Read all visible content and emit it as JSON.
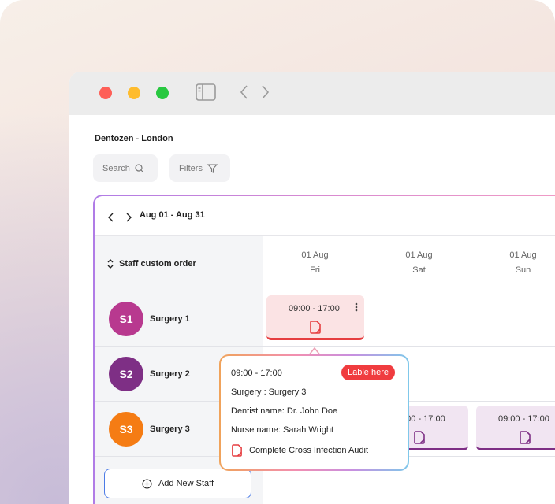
{
  "organization": "Dentozen - London",
  "toolbar": {
    "search_label": "Search",
    "filters_label": "Filters"
  },
  "calendar": {
    "date_range": "Aug 01 - Aug 31",
    "sort_label": "Staff custom order",
    "days": [
      {
        "date": "01 Aug",
        "weekday": "Fri"
      },
      {
        "date": "01 Aug",
        "weekday": "Sat"
      },
      {
        "date": "01 Aug",
        "weekday": "Sun"
      }
    ],
    "staff": [
      {
        "initials": "S1",
        "name": "Surgery 1",
        "color": "#b8398f"
      },
      {
        "initials": "S2",
        "name": "Surgery 2",
        "color": "#7e2f85"
      },
      {
        "initials": "S3",
        "name": "Surgery 3",
        "color": "#f57c14"
      }
    ],
    "add_staff_label": "Add New Staff",
    "shifts": [
      {
        "time": "09:00 - 17:00"
      },
      {
        "time": "9:00 - 17:00"
      },
      {
        "time": "09:00 - 17:00"
      }
    ]
  },
  "popover": {
    "time": "09:00 - 17:00",
    "badge": "Lable here",
    "surgery": "Surgery : Surgery 3",
    "dentist": "Dentist name: Dr. John Doe",
    "nurse": "Nurse name: Sarah Wright",
    "task": "Complete Cross Infection Audit"
  },
  "colors": {
    "accent_red": "#e63e40",
    "accent_purple": "#7e2f85",
    "button_border": "#4b7be6"
  }
}
